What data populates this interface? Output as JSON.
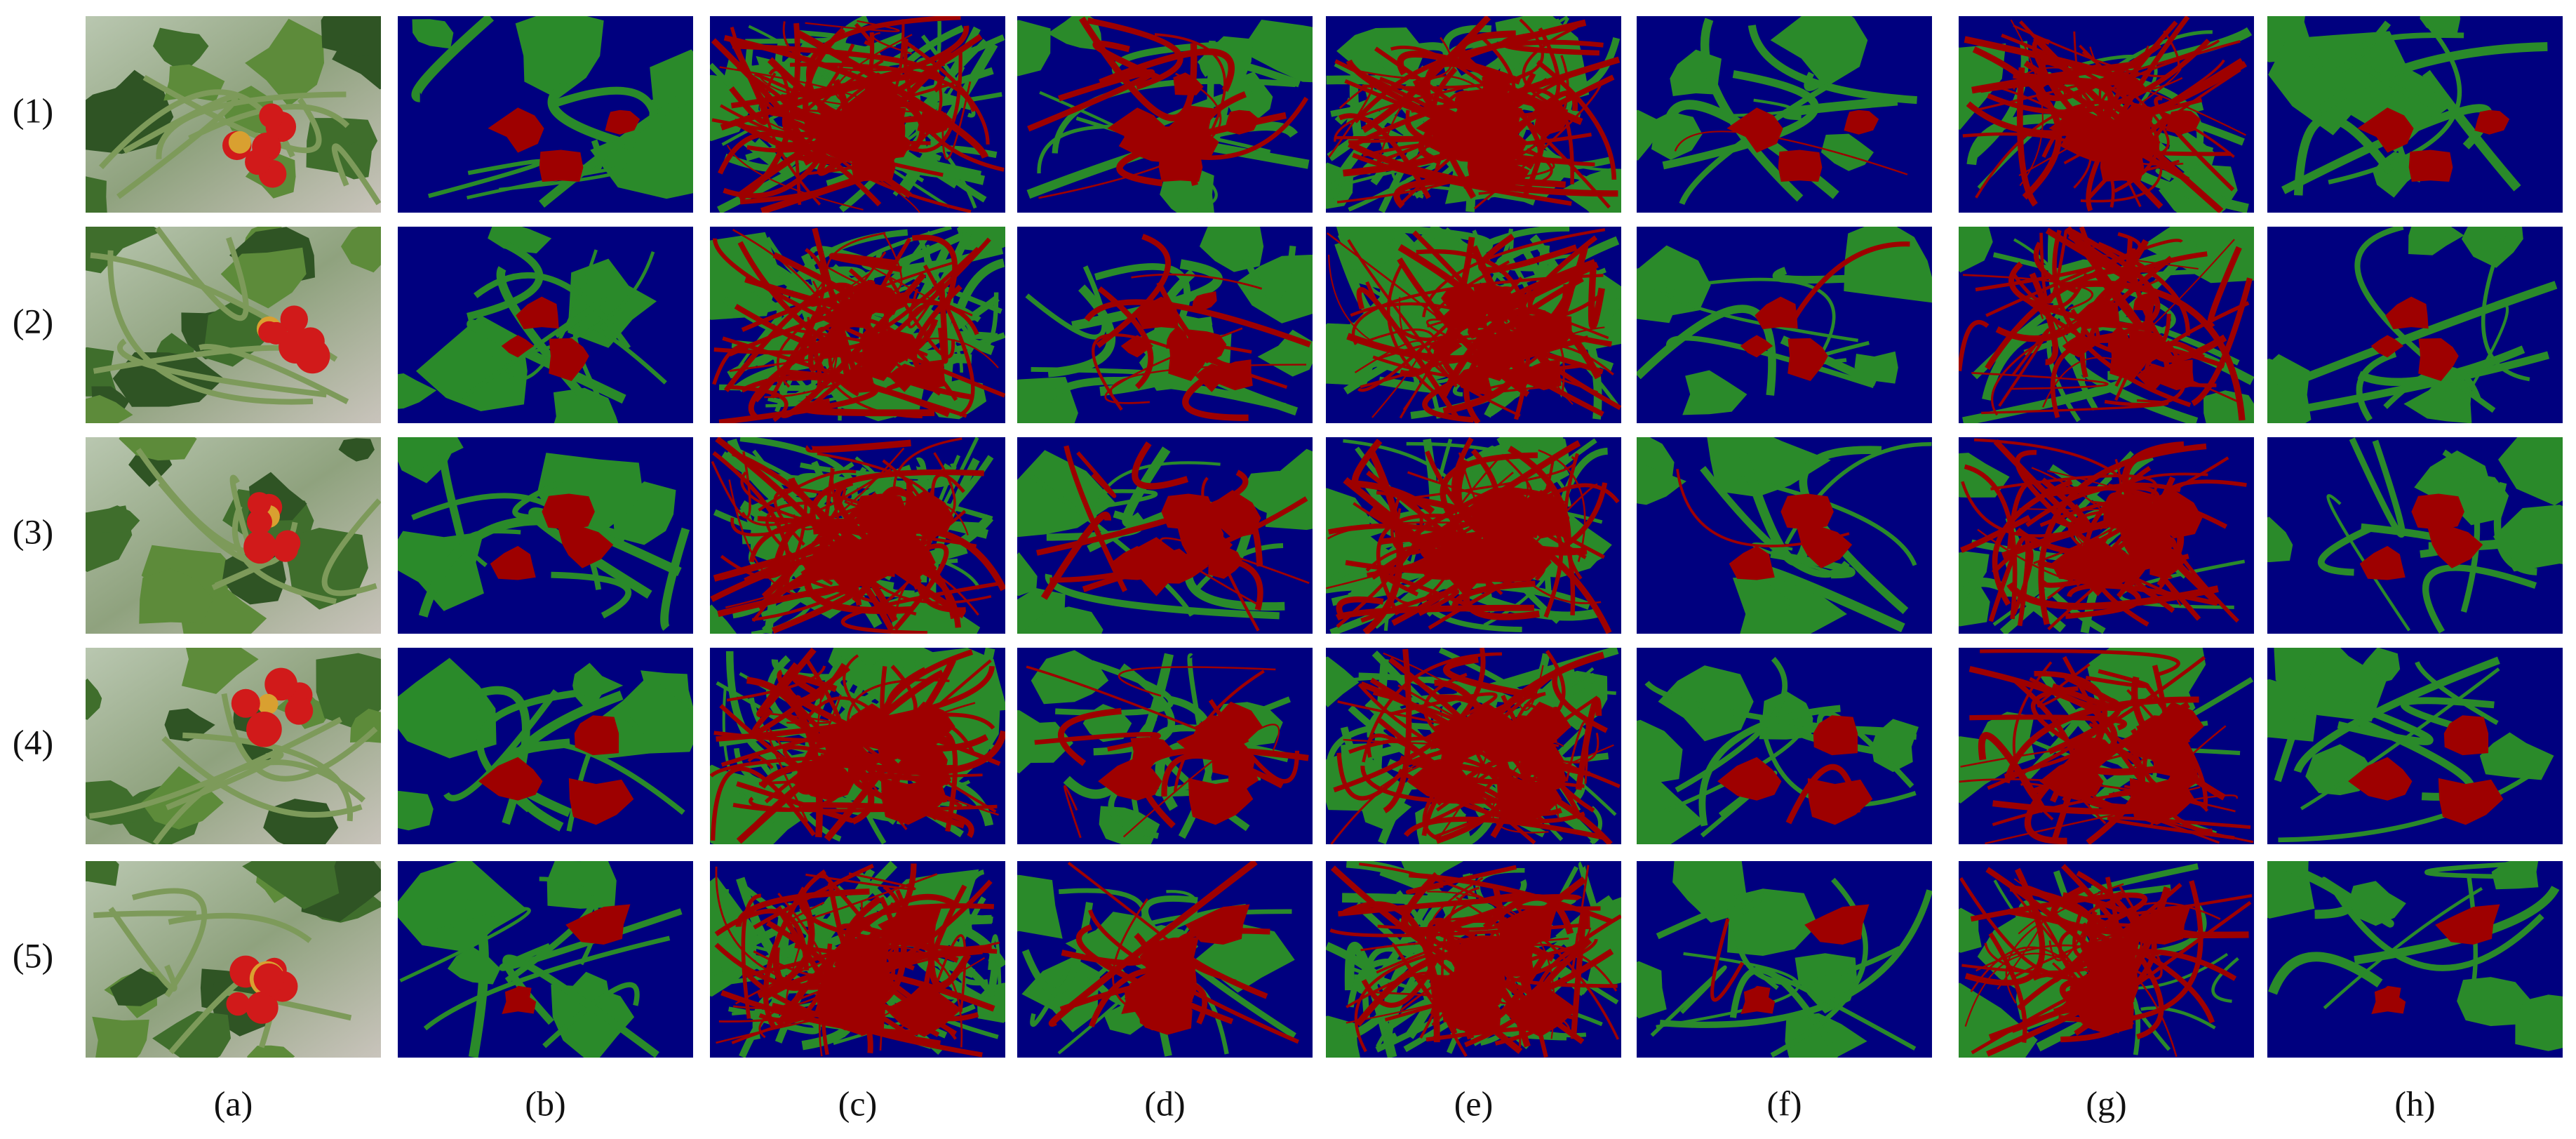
{
  "row_labels": [
    "(1)",
    "(2)",
    "(3)",
    "(4)",
    "(5)"
  ],
  "column_labels": [
    "(a)",
    "(b)",
    "(c)",
    "(d)",
    "(e)",
    "(f)",
    "(g)",
    "(h)"
  ]
}
